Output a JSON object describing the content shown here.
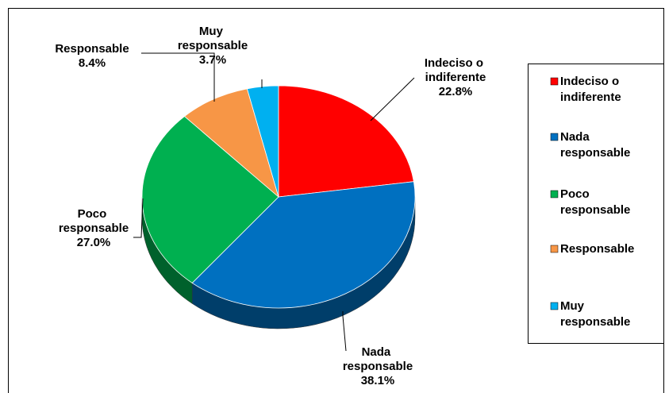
{
  "chart_data": {
    "type": "pie",
    "categories": [
      "Indeciso o indiferente",
      "Nada responsable",
      "Poco responsable",
      "Responsable",
      "Muy responsable"
    ],
    "values": [
      22.8,
      38.1,
      27.0,
      8.4,
      3.7
    ],
    "value_labels": [
      "22.8%",
      "38.1%",
      "27.0%",
      "8.4%",
      "3.7%"
    ],
    "colors": [
      "#ff0000",
      "#0070c0",
      "#00b050",
      "#f79646",
      "#00b0f0"
    ],
    "legend": "right"
  }
}
